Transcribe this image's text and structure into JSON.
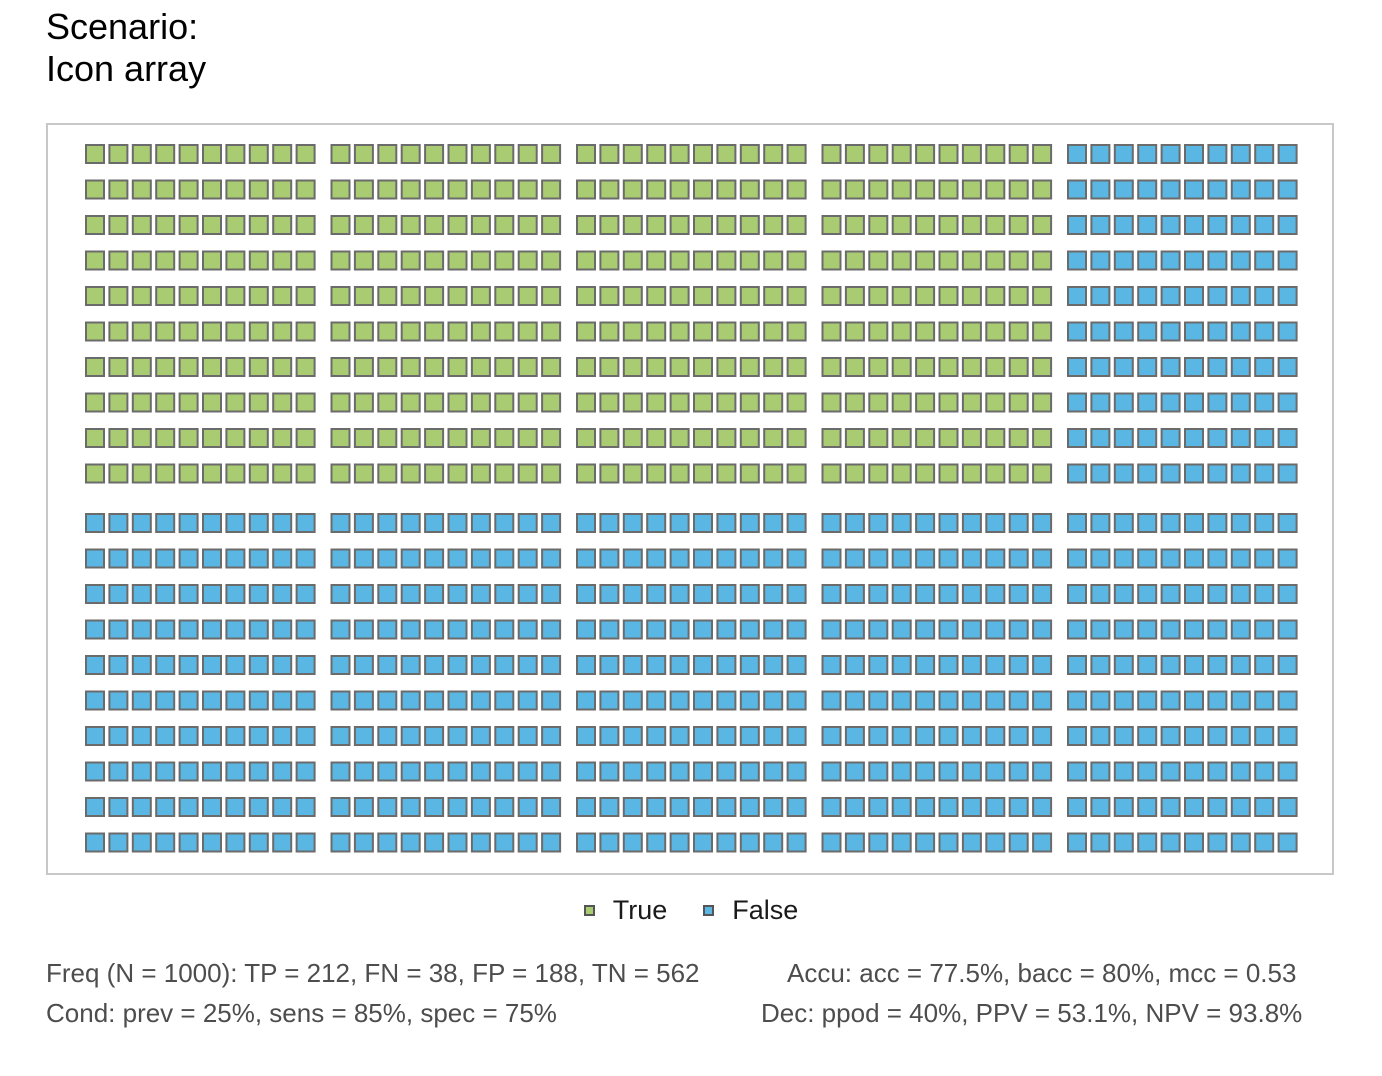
{
  "title_lines": [
    "Scenario:",
    "Icon array"
  ],
  "chart_data": {
    "type": "icon_array",
    "N": 1000,
    "categories": [
      "True",
      "False"
    ],
    "values": [
      400,
      600
    ],
    "colors": {
      "True": "#a9cc72",
      "False": "#5ab6e3",
      "icon_border": "#6b6b6b"
    },
    "layout": {
      "blocks_across": 5,
      "blocks_down": 2,
      "icons_per_block_across": 10,
      "icons_per_block_down": 10,
      "fill_order": "column blocks, top half first"
    }
  },
  "legend": {
    "true_label": "True",
    "false_label": "False"
  },
  "footer": {
    "freq": "Freq (N = 1000):  TP = 212, FN = 38, FP = 188, TN = 562",
    "accu": "Accu:  acc = 77.5%, bacc = 80%, mcc = 0.53",
    "cond": "Cond:  prev = 25%, sens = 85%, spec = 75%",
    "dec": "Dec:  ppod = 40%, PPV = 53.1%, NPV = 93.8%"
  }
}
